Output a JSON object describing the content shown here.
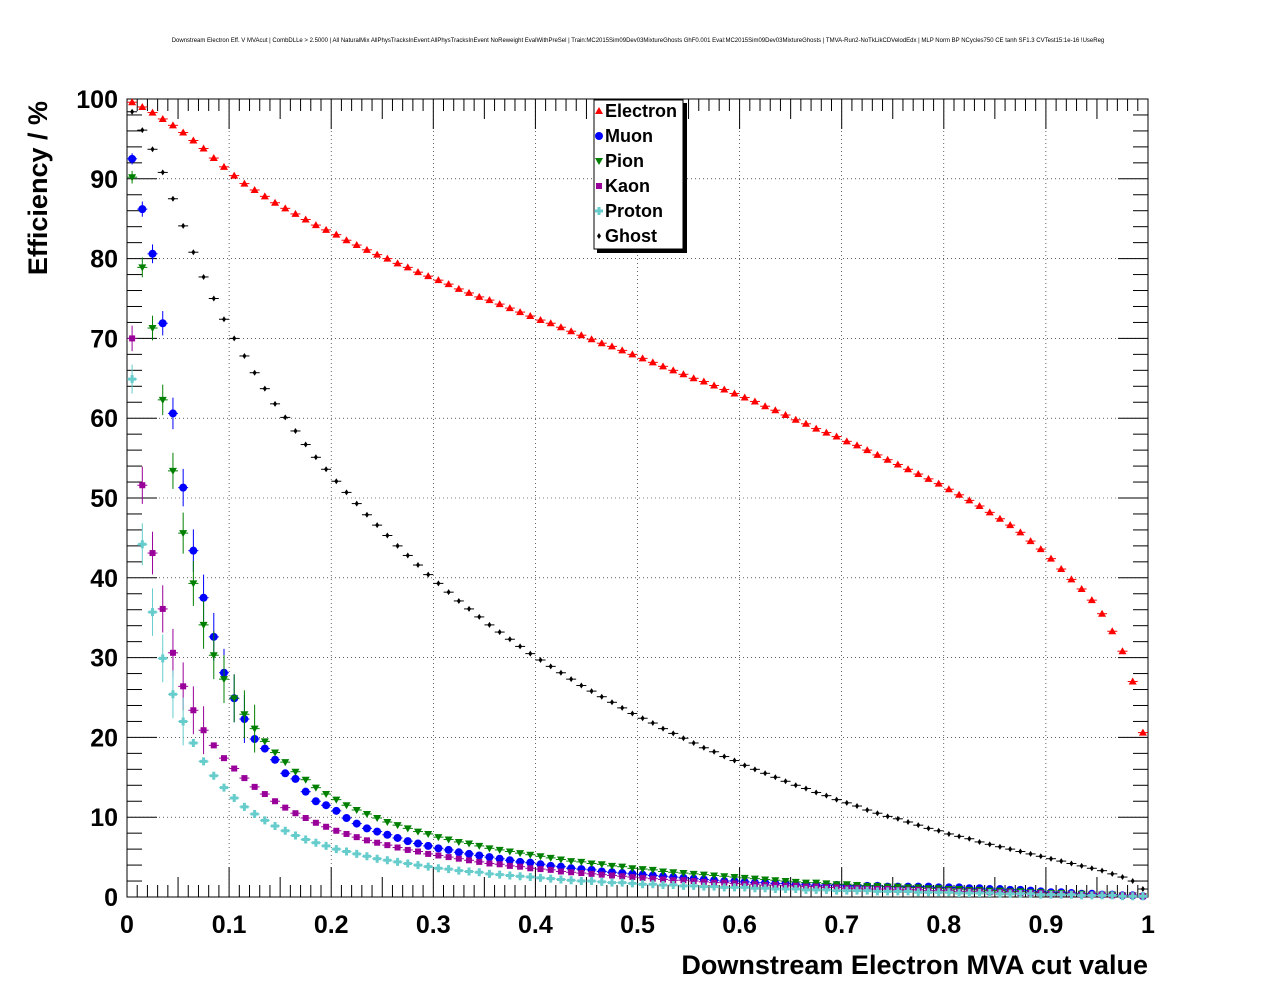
{
  "chart_data": {
    "type": "scatter",
    "title": "Downstream Electron Eff. V MVAcut | CombDLLe > 2.5000 | All NaturalMix AllPhysTracksInEvent:AllPhysTracksInEvent NoReweight EvalWithPreSel | Train:MC2015Sim09Dev03MixtureGhosts GhF0.001 Eval:MC2015Sim09Dev03MixtureGhosts | TMVA-Run2-NoTkLikCDVelodEdx | MLP Norm BP NCycles750 CE tanh SF1.3 CVTest15:1e-16 !UseReg",
    "xlabel": "Downstream Electron MVA cut value",
    "ylabel": "Efficiency / %",
    "xlim": [
      0,
      1
    ],
    "ylim": [
      0,
      100
    ],
    "xticks": [
      "0",
      "0.1",
      "0.2",
      "0.3",
      "0.4",
      "0.5",
      "0.6",
      "0.7",
      "0.8",
      "0.9",
      "1"
    ],
    "yticks": [
      "0",
      "10",
      "20",
      "30",
      "40",
      "50",
      "60",
      "70",
      "80",
      "90",
      "100"
    ],
    "grid": true,
    "legend_position": "top-center",
    "x": [
      0.005,
      0.015,
      0.025,
      0.035,
      0.045,
      0.055,
      0.065,
      0.075,
      0.085,
      0.095,
      0.105,
      0.115,
      0.125,
      0.135,
      0.145,
      0.155,
      0.165,
      0.175,
      0.185,
      0.195,
      0.205,
      0.215,
      0.225,
      0.235,
      0.245,
      0.255,
      0.265,
      0.275,
      0.285,
      0.295,
      0.305,
      0.315,
      0.325,
      0.335,
      0.345,
      0.355,
      0.365,
      0.375,
      0.385,
      0.395,
      0.405,
      0.415,
      0.425,
      0.435,
      0.445,
      0.455,
      0.465,
      0.475,
      0.485,
      0.495,
      0.505,
      0.515,
      0.525,
      0.535,
      0.545,
      0.555,
      0.565,
      0.575,
      0.585,
      0.595,
      0.605,
      0.615,
      0.625,
      0.635,
      0.645,
      0.655,
      0.665,
      0.675,
      0.685,
      0.695,
      0.705,
      0.715,
      0.725,
      0.735,
      0.745,
      0.755,
      0.765,
      0.775,
      0.785,
      0.795,
      0.805,
      0.815,
      0.825,
      0.835,
      0.845,
      0.855,
      0.865,
      0.875,
      0.885,
      0.895,
      0.905,
      0.915,
      0.925,
      0.935,
      0.945,
      0.955,
      0.965,
      0.975,
      0.985,
      0.995
    ],
    "series": [
      {
        "name": "Electron",
        "color": "#ff0000",
        "marker": "triangle-up",
        "values": [
          99.6,
          99.0,
          98.3,
          97.5,
          96.7,
          95.8,
          94.8,
          93.8,
          92.6,
          91.5,
          90.4,
          89.4,
          88.6,
          87.8,
          87.0,
          86.3,
          85.6,
          84.9,
          84.2,
          83.6,
          83.0,
          82.3,
          81.7,
          81.1,
          80.5,
          80.0,
          79.4,
          78.9,
          78.3,
          77.8,
          77.3,
          76.8,
          76.2,
          75.7,
          75.2,
          74.8,
          74.3,
          73.8,
          73.3,
          72.8,
          72.3,
          71.9,
          71.4,
          70.9,
          70.4,
          69.9,
          69.4,
          69.0,
          68.5,
          68.0,
          67.5,
          67.0,
          66.5,
          66.0,
          65.5,
          65.0,
          64.6,
          64.1,
          63.6,
          63.1,
          62.6,
          62.1,
          61.5,
          61.0,
          60.4,
          59.8,
          59.3,
          58.7,
          58.2,
          57.7,
          57.1,
          56.6,
          56.0,
          55.4,
          54.8,
          54.2,
          53.6,
          53.0,
          52.4,
          51.8,
          51.1,
          50.4,
          49.7,
          49.0,
          48.2,
          47.4,
          46.6,
          45.7,
          44.6,
          43.6,
          42.4,
          41.1,
          39.8,
          38.6,
          37.2,
          35.5,
          33.3,
          30.8,
          27.0,
          20.6
        ]
      },
      {
        "name": "Muon",
        "color": "#0000ff",
        "marker": "circle",
        "values": [
          92.5,
          86.2,
          80.6,
          71.9,
          60.6,
          51.3,
          43.4,
          37.5,
          32.6,
          28.1,
          24.9,
          22.3,
          19.8,
          18.6,
          17.2,
          15.5,
          14.8,
          13.2,
          12.0,
          11.5,
          10.8,
          9.9,
          9.2,
          8.6,
          8.2,
          7.8,
          7.4,
          7.0,
          6.7,
          6.4,
          6.1,
          5.9,
          5.6,
          5.4,
          5.2,
          5.0,
          4.8,
          4.6,
          4.4,
          4.3,
          4.1,
          3.9,
          3.8,
          3.6,
          3.5,
          3.4,
          3.2,
          3.1,
          3.0,
          2.9,
          2.8,
          2.7,
          2.6,
          2.5,
          2.4,
          2.3,
          2.2,
          2.1,
          2.0,
          2.0,
          1.9,
          1.8,
          1.8,
          1.7,
          1.7,
          1.6,
          1.6,
          1.5,
          1.5,
          1.5,
          1.4,
          1.4,
          1.4,
          1.4,
          1.3,
          1.3,
          1.3,
          1.3,
          1.3,
          1.2,
          1.2,
          1.2,
          1.1,
          1.1,
          1.0,
          1.0,
          0.9,
          0.9,
          0.8,
          0.7,
          0.6,
          0.6,
          0.5,
          0.4,
          0.4,
          0.3,
          0.3,
          0.2,
          0.2,
          0.1
        ]
      },
      {
        "name": "Pion",
        "color": "#008000",
        "marker": "triangle-down",
        "values": [
          90.2,
          78.9,
          71.3,
          62.3,
          53.4,
          45.6,
          39.3,
          34.1,
          30.3,
          27.3,
          24.9,
          22.9,
          21.1,
          19.5,
          18.1,
          16.9,
          15.7,
          14.7,
          13.7,
          12.9,
          12.2,
          11.5,
          10.9,
          10.4,
          9.9,
          9.4,
          9.0,
          8.6,
          8.2,
          7.9,
          7.5,
          7.2,
          6.9,
          6.7,
          6.4,
          6.1,
          5.9,
          5.7,
          5.5,
          5.3,
          5.1,
          4.9,
          4.7,
          4.5,
          4.4,
          4.2,
          4.1,
          3.9,
          3.8,
          3.6,
          3.5,
          3.4,
          3.2,
          3.1,
          3.0,
          2.9,
          2.8,
          2.7,
          2.6,
          2.5,
          2.4,
          2.3,
          2.2,
          2.1,
          2.0,
          1.9,
          1.8,
          1.8,
          1.7,
          1.6,
          1.6,
          1.5,
          1.4,
          1.4,
          1.3,
          1.3,
          1.2,
          1.2,
          1.1,
          1.1,
          1.0,
          1.0,
          0.9,
          0.9,
          0.8,
          0.8,
          0.7,
          0.7,
          0.6,
          0.6,
          0.5,
          0.5,
          0.4,
          0.4,
          0.3,
          0.3,
          0.3,
          0.2,
          0.2,
          0.1
        ]
      },
      {
        "name": "Kaon",
        "color": "#990099",
        "marker": "square",
        "values": [
          70.0,
          51.6,
          43.1,
          36.1,
          30.6,
          26.4,
          23.4,
          20.9,
          19.0,
          17.4,
          16.1,
          14.9,
          13.8,
          12.9,
          12.0,
          11.2,
          10.5,
          9.9,
          9.3,
          8.8,
          8.3,
          7.9,
          7.5,
          7.1,
          6.8,
          6.5,
          6.2,
          5.9,
          5.7,
          5.4,
          5.2,
          5.0,
          4.8,
          4.6,
          4.4,
          4.2,
          4.1,
          3.9,
          3.8,
          3.6,
          3.5,
          3.4,
          3.2,
          3.1,
          3.0,
          2.9,
          2.8,
          2.7,
          2.6,
          2.5,
          2.4,
          2.3,
          2.2,
          2.1,
          2.1,
          2.0,
          1.9,
          1.8,
          1.8,
          1.7,
          1.6,
          1.6,
          1.5,
          1.5,
          1.4,
          1.4,
          1.3,
          1.3,
          1.2,
          1.2,
          1.1,
          1.1,
          1.0,
          1.0,
          1.0,
          0.9,
          0.9,
          0.9,
          0.8,
          0.8,
          0.8,
          0.7,
          0.7,
          0.7,
          0.6,
          0.6,
          0.6,
          0.5,
          0.5,
          0.5,
          0.4,
          0.4,
          0.4,
          0.3,
          0.3,
          0.3,
          0.2,
          0.2,
          0.2,
          0.1
        ]
      },
      {
        "name": "Proton",
        "color": "#66cccc",
        "marker": "cross",
        "values": [
          64.9,
          44.2,
          35.7,
          29.9,
          25.4,
          22.0,
          19.3,
          17.0,
          15.2,
          13.7,
          12.4,
          11.3,
          10.4,
          9.6,
          8.9,
          8.3,
          7.7,
          7.2,
          6.8,
          6.4,
          6.0,
          5.7,
          5.4,
          5.1,
          4.8,
          4.6,
          4.4,
          4.2,
          4.0,
          3.8,
          3.6,
          3.5,
          3.3,
          3.2,
          3.1,
          2.9,
          2.8,
          2.7,
          2.6,
          2.5,
          2.4,
          2.3,
          2.2,
          2.1,
          2.0,
          2.0,
          1.9,
          1.8,
          1.8,
          1.7,
          1.6,
          1.6,
          1.5,
          1.5,
          1.4,
          1.4,
          1.3,
          1.3,
          1.2,
          1.2,
          1.2,
          1.1,
          1.1,
          1.0,
          1.0,
          1.0,
          0.9,
          0.9,
          0.9,
          0.8,
          0.8,
          0.8,
          0.8,
          0.7,
          0.7,
          0.7,
          0.7,
          0.6,
          0.6,
          0.6,
          0.6,
          0.5,
          0.5,
          0.5,
          0.5,
          0.4,
          0.4,
          0.4,
          0.4,
          0.3,
          0.3,
          0.3,
          0.3,
          0.2,
          0.2,
          0.2,
          0.2,
          0.1,
          0.1,
          0.1
        ]
      },
      {
        "name": "Ghost",
        "color": "#000000",
        "marker": "diamond",
        "values": [
          98.4,
          96.1,
          93.7,
          90.8,
          87.5,
          84.1,
          80.8,
          77.7,
          75.0,
          72.4,
          70.0,
          67.8,
          65.7,
          63.7,
          61.8,
          60.1,
          58.4,
          56.7,
          55.1,
          53.6,
          52.1,
          50.7,
          49.3,
          47.9,
          46.6,
          45.3,
          44.0,
          42.8,
          41.6,
          40.4,
          39.3,
          38.2,
          37.1,
          36.1,
          35.1,
          34.1,
          33.2,
          32.3,
          31.4,
          30.5,
          29.7,
          28.9,
          28.1,
          27.3,
          26.5,
          25.8,
          25.1,
          24.4,
          23.7,
          23.0,
          22.4,
          21.8,
          21.1,
          20.5,
          19.9,
          19.3,
          18.7,
          18.2,
          17.6,
          17.1,
          16.5,
          16.0,
          15.5,
          15.0,
          14.5,
          14.0,
          13.6,
          13.1,
          12.7,
          12.2,
          11.8,
          11.4,
          10.9,
          10.5,
          10.1,
          9.8,
          9.4,
          9.0,
          8.6,
          8.3,
          7.9,
          7.6,
          7.3,
          6.9,
          6.6,
          6.3,
          6.0,
          5.7,
          5.4,
          5.1,
          4.8,
          4.5,
          4.2,
          3.9,
          3.6,
          3.3,
          2.9,
          2.5,
          2.0,
          1.0
        ]
      }
    ]
  }
}
